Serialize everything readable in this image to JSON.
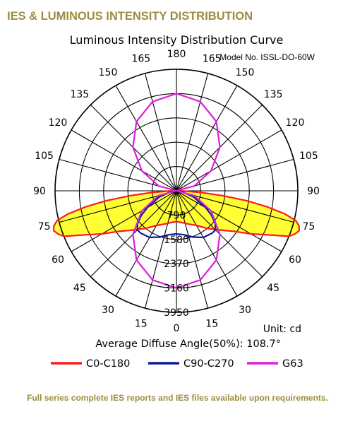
{
  "page": {
    "heading": "IES & LUMINOUS INTENSITY DISTRIBUTION",
    "footer": "Full series complete IES reports and IES files available upon requirements."
  },
  "chart_data": {
    "type": "polar",
    "title": "Luminous Intensity Distribution Curve",
    "model": "Model No. ISSL-DO-60W",
    "unit_label": "Unit: cd",
    "average_angle_label": "Average Diffuse Angle(50%): 108.7°",
    "angle_labels": {
      "left": [
        "0",
        "15",
        "30",
        "45",
        "60",
        "75",
        "90",
        "105",
        "120",
        "135",
        "150",
        "165",
        "180"
      ],
      "right": [
        "0",
        "15",
        "30",
        "45",
        "60",
        "75",
        "90",
        "105",
        "120",
        "135",
        "150",
        "165",
        "180"
      ]
    },
    "radial_labels": [
      "790",
      "1580",
      "2370",
      "3160",
      "3950"
    ],
    "radial_values": [
      790,
      1580,
      2370,
      3160,
      3950
    ],
    "rmax": 3950,
    "colors": {
      "fill": "#ffff33",
      "grid": "#000000"
    },
    "series": [
      {
        "name": "C0-C180",
        "color": "#ff1a1a",
        "angles": [
          0,
          10,
          20,
          30,
          40,
          50,
          55,
          60,
          65,
          68,
          70,
          72,
          74,
          76,
          78,
          80,
          82,
          84,
          86,
          88,
          90
        ],
        "values": [
          1000,
          1050,
          1150,
          1300,
          1600,
          2000,
          2300,
          2800,
          3400,
          3950,
          4100,
          4200,
          4150,
          4000,
          3600,
          3000,
          2300,
          1500,
          800,
          300,
          0
        ]
      },
      {
        "name": "C90-C270",
        "color": "#0b1a9e",
        "angles": [
          0,
          10,
          20,
          30,
          40,
          45,
          50,
          55,
          60,
          70,
          80,
          90
        ],
        "values": [
          1400,
          1450,
          1600,
          1750,
          1800,
          1800,
          1650,
          1400,
          1100,
          600,
          200,
          0
        ]
      },
      {
        "name": "G63",
        "color": "#e01ce0",
        "angles": [
          0,
          15,
          30,
          45,
          60,
          75,
          90,
          105,
          120,
          135,
          150,
          165,
          180
        ],
        "values": [
          3160,
          3000,
          2600,
          2000,
          1300,
          600,
          0,
          600,
          1300,
          2000,
          2600,
          3000,
          3160
        ]
      }
    ]
  }
}
